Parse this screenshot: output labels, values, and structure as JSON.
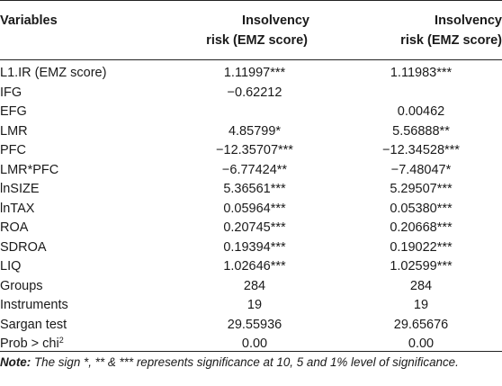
{
  "header": {
    "variables": "Variables",
    "col1_line1": "Insolvency",
    "col1_line2": "risk (EMZ score)",
    "col2_line1": "Insolvency",
    "col2_line2": "risk (EMZ score)"
  },
  "rows": [
    {
      "label": "L1.IR (EMZ score)",
      "v1": "1.11997***",
      "v2": "1.11983***"
    },
    {
      "label": "IFG",
      "v1": "−0.62212",
      "v2": ""
    },
    {
      "label": "EFG",
      "v1": "",
      "v2": "0.00462"
    },
    {
      "label": "LMR",
      "v1": "4.85799*",
      "v2": "5.56888**"
    },
    {
      "label": "PFC",
      "v1": "−12.35707***",
      "v2": "−12.34528***"
    },
    {
      "label": "LMR*PFC",
      "v1": "−6.77424**",
      "v2": "−7.48047*"
    },
    {
      "label": "lnSIZE",
      "v1": "5.36561***",
      "v2": "5.29507***"
    },
    {
      "label": "lnTAX",
      "v1": "0.05964***",
      "v2": "0.05380***"
    },
    {
      "label": "ROA",
      "v1": "0.20745***",
      "v2": "0.20668***"
    },
    {
      "label": "SDROA",
      "v1": "0.19394***",
      "v2": "0.19022***"
    },
    {
      "label": "LIQ",
      "v1": "1.02646***",
      "v2": "1.02599***"
    },
    {
      "label": "Groups",
      "v1": "284",
      "v2": "284"
    },
    {
      "label": "Instruments",
      "v1": "19",
      "v2": "19"
    },
    {
      "label": "Sargan test",
      "v1": "29.55936",
      "v2": "29.65676"
    },
    {
      "label": "Prob > chi",
      "label_sup": "2",
      "v1": "0.00",
      "v2": "0.00"
    }
  ],
  "note": {
    "prefix": "Note:",
    "text": " The sign *, ** & *** represents significance at 10, 5 and 1% level of significance."
  }
}
